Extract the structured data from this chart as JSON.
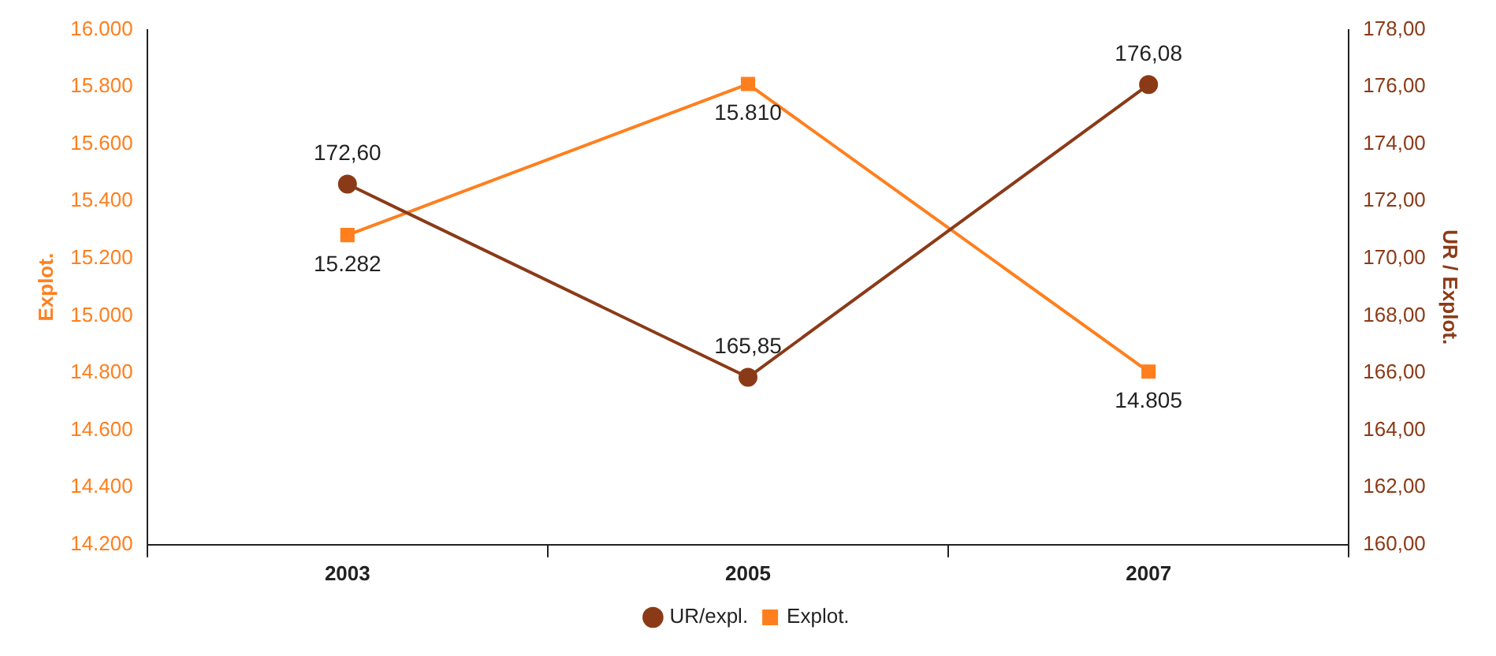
{
  "chart_data": {
    "type": "line",
    "categories": [
      "2003",
      "2005",
      "2007"
    ],
    "ylabel": "Explot.",
    "y2label": "UR / Explot.",
    "ylim": [
      14200,
      16000
    ],
    "yticks": [
      {
        "value": 14200,
        "label": "14.200"
      },
      {
        "value": 14400,
        "label": "14.400"
      },
      {
        "value": 14600,
        "label": "14.600"
      },
      {
        "value": 14800,
        "label": "14.800"
      },
      {
        "value": 15000,
        "label": "15.000"
      },
      {
        "value": 15200,
        "label": "15.200"
      },
      {
        "value": 15400,
        "label": "15.400"
      },
      {
        "value": 15600,
        "label": "15.600"
      },
      {
        "value": 15800,
        "label": "15.800"
      },
      {
        "value": 16000,
        "label": "16.000"
      }
    ],
    "y2lim": [
      160,
      178
    ],
    "y2ticks": [
      {
        "value": 160,
        "label": "160,00"
      },
      {
        "value": 162,
        "label": "162,00"
      },
      {
        "value": 164,
        "label": "164,00"
      },
      {
        "value": 166,
        "label": "166,00"
      },
      {
        "value": 168,
        "label": "168,00"
      },
      {
        "value": 170,
        "label": "170,00"
      },
      {
        "value": 172,
        "label": "172,00"
      },
      {
        "value": 174,
        "label": "174,00"
      },
      {
        "value": 176,
        "label": "176,00"
      },
      {
        "value": 178,
        "label": "178,00"
      }
    ],
    "series": [
      {
        "name": "UR/expl.",
        "color": "#8b3a17",
        "axis": "y2",
        "marker": "circle",
        "values": [
          172.6,
          165.85,
          176.08
        ],
        "value_labels": [
          "172,60",
          "165,85",
          "176,08"
        ]
      },
      {
        "name": "Explot.",
        "color": "#ff7f1e",
        "axis": "y",
        "marker": "square",
        "values": [
          15282,
          15810,
          14805
        ],
        "value_labels": [
          "15.282",
          "15.810",
          "14.805"
        ]
      }
    ],
    "legend": "bottom",
    "grid": false
  }
}
